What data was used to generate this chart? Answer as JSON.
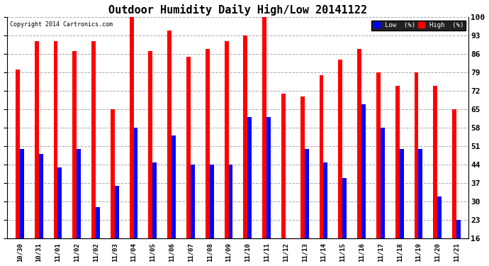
{
  "title": "Outdoor Humidity Daily High/Low 20141122",
  "copyright": "Copyright 2014 Cartronics.com",
  "ylabel_right_ticks": [
    16,
    23,
    30,
    37,
    44,
    51,
    58,
    65,
    72,
    79,
    86,
    93,
    100
  ],
  "labels": [
    "10/30",
    "10/31",
    "11/01",
    "11/02",
    "11/02",
    "11/03",
    "11/04",
    "11/05",
    "11/06",
    "11/07",
    "11/08",
    "11/09",
    "11/10",
    "11/11",
    "11/12",
    "11/13",
    "11/14",
    "11/15",
    "11/16",
    "11/17",
    "11/18",
    "11/19",
    "11/20",
    "11/21"
  ],
  "high": [
    80,
    91,
    91,
    87,
    91,
    65,
    100,
    87,
    95,
    85,
    88,
    91,
    93,
    100,
    71,
    70,
    78,
    84,
    88,
    79,
    74,
    79,
    74,
    65
  ],
  "low": [
    50,
    48,
    43,
    50,
    28,
    36,
    58,
    45,
    55,
    44,
    44,
    44,
    62,
    62,
    16,
    50,
    45,
    39,
    67,
    58,
    50,
    50,
    32,
    23
  ],
  "bar_width": 0.22,
  "high_color": "#FF0000",
  "low_color": "#0000FF",
  "bg_color": "#FFFFFF",
  "plot_bg_color": "#FFFFFF",
  "grid_color": "#AAAAAA",
  "title_fontsize": 11,
  "ylim_min": 16,
  "ylim_max": 100
}
